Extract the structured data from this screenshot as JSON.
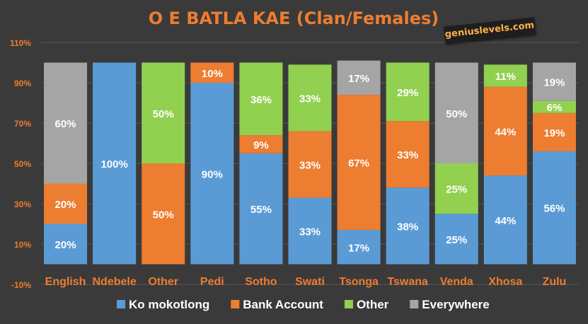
{
  "chart_data": {
    "type": "bar",
    "stacked": true,
    "title": "O E BATLA KAE (Clan/Females)",
    "categories": [
      "English",
      "Ndebele",
      "Other",
      "Pedi",
      "Sotho",
      "Swati",
      "Tsonga",
      "Tswana",
      "Venda",
      "Xhosa",
      "Zulu"
    ],
    "series": [
      {
        "name": "Ko mokotlong",
        "color": "#5b9bd5",
        "values": [
          20,
          100,
          0,
          90,
          55,
          33,
          17,
          38,
          25,
          44,
          56
        ],
        "labels": [
          "20%",
          "100%",
          "",
          "90%",
          "55%",
          "33%",
          "17%",
          "38%",
          "25%",
          "44%",
          "56%"
        ]
      },
      {
        "name": "Bank Account",
        "color": "#ed7d31",
        "values": [
          20,
          0,
          50,
          10,
          9,
          33,
          67,
          33,
          0,
          44,
          19
        ],
        "labels": [
          "20%",
          "",
          "50%",
          "10%",
          "9%",
          "33%",
          "67%",
          "33%",
          "",
          "44%",
          "19%"
        ]
      },
      {
        "name": "Other",
        "color": "#92d050",
        "values": [
          0,
          0,
          50,
          0,
          36,
          33,
          0,
          29,
          25,
          11,
          6
        ],
        "labels": [
          "",
          "",
          "50%",
          "",
          "36%",
          "33%",
          "",
          "29%",
          "25%",
          "11%",
          "6%"
        ]
      },
      {
        "name": "Everywhere",
        "color": "#a5a5a5",
        "values": [
          60,
          0,
          0,
          0,
          0,
          0,
          17,
          0,
          50,
          0,
          19
        ],
        "labels": [
          "60%",
          "",
          "",
          "",
          "",
          "",
          "17%",
          "",
          "50%",
          "",
          "19%"
        ]
      }
    ],
    "yticks": [
      "-10%",
      "10%",
      "30%",
      "50%",
      "70%",
      "90%",
      "110%"
    ],
    "ylim": [
      -10,
      110
    ],
    "grid": true,
    "legend_position": "bottom",
    "watermark": "geniuslevels.com",
    "title_color": "#ed7d31",
    "axis_label_color": "#ed7d31",
    "label_color": "#ffffff",
    "gridline_color": "#555555"
  }
}
